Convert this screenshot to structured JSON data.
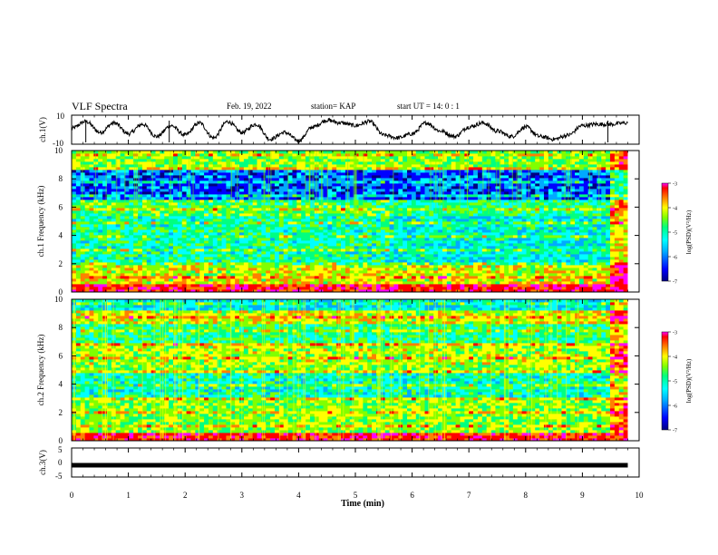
{
  "header": {
    "title": "VLF Spectra",
    "date": "Feb. 19, 2022",
    "station": "station= KAP",
    "start_ut": "start  UT =   14: 0   : 1"
  },
  "chart_data": [
    {
      "type": "line",
      "panel": "ch1-waveform",
      "ylabel": "ch.1(V)",
      "ylim": [
        -10,
        10
      ],
      "y_ticks": [
        "10",
        "-10"
      ],
      "x_range_min": [
        0,
        9.8
      ],
      "series": [
        {
          "x": [
            0,
            0.25,
            0.5,
            0.75,
            1.0,
            1.25,
            1.5,
            1.75,
            2.0,
            2.25,
            2.5,
            2.75,
            3.0,
            3.25,
            3.5,
            3.75,
            4.0,
            4.25,
            4.5,
            4.75,
            5.0,
            5.25,
            5.5,
            5.75,
            6.0,
            6.25,
            6.5,
            6.75,
            7.0,
            7.25,
            7.5,
            7.75,
            8.0,
            8.25,
            8.5,
            8.75,
            9.0,
            9.25,
            9.5,
            9.8
          ],
          "values": [
            1,
            6,
            -2,
            5,
            -3,
            4,
            -5,
            3,
            -4,
            5,
            -6,
            6,
            -2,
            4,
            -7,
            -2,
            -8,
            2,
            7,
            5,
            3,
            6,
            -4,
            -6,
            -3,
            5,
            -1,
            -5,
            2,
            5,
            -1,
            -5,
            2,
            -5,
            -7,
            -4,
            3,
            4,
            4,
            5
          ]
        }
      ]
    },
    {
      "type": "heatmap",
      "panel": "ch1-spectrogram",
      "ylabel": "ch.1 Frequency (kHz)",
      "ylim": [
        0,
        10
      ],
      "y_ticks": [
        "0",
        "2",
        "4",
        "6",
        "8",
        "10"
      ],
      "x_range_min": [
        0,
        9.8
      ],
      "colorbar": {
        "label": "log(PSD)(V²/Hz)",
        "range": [
          -7,
          -3
        ],
        "ticks": [
          "-3",
          "-4",
          "-5",
          "-6",
          "-7"
        ]
      }
    },
    {
      "type": "heatmap",
      "panel": "ch2-spectrogram",
      "ylabel": "ch.2 Frequency (kHz)",
      "ylim": [
        0,
        10
      ],
      "y_ticks": [
        "0",
        "2",
        "4",
        "6",
        "8",
        "10"
      ],
      "x_range_min": [
        0,
        9.8
      ],
      "colorbar": {
        "label": "log(PSD)(V²/Hz)",
        "range": [
          -7,
          -3
        ],
        "ticks": [
          "-3",
          "-4",
          "-5",
          "-6",
          "-7"
        ]
      }
    },
    {
      "type": "line",
      "panel": "ch3-waveform",
      "ylabel": "ch.3(V)",
      "ylim": [
        -5,
        5
      ],
      "y_ticks": [
        "5",
        "0",
        "-5"
      ],
      "x_range_min": [
        0,
        9.8
      ],
      "series": [
        {
          "x": [
            0,
            9.8
          ],
          "values": [
            -1,
            -1
          ]
        }
      ]
    }
  ],
  "xaxis": {
    "label": "Time (min)",
    "ticks": [
      "0",
      "1",
      "2",
      "3",
      "4",
      "5",
      "6",
      "7",
      "8",
      "9",
      "10"
    ],
    "range": [
      0,
      10
    ]
  },
  "colors": {
    "colormap": [
      "#000080",
      "#0000ff",
      "#00aaff",
      "#00ffff",
      "#00ff80",
      "#80ff00",
      "#ffff00",
      "#ff8000",
      "#ff0000",
      "#ff00ff"
    ]
  }
}
